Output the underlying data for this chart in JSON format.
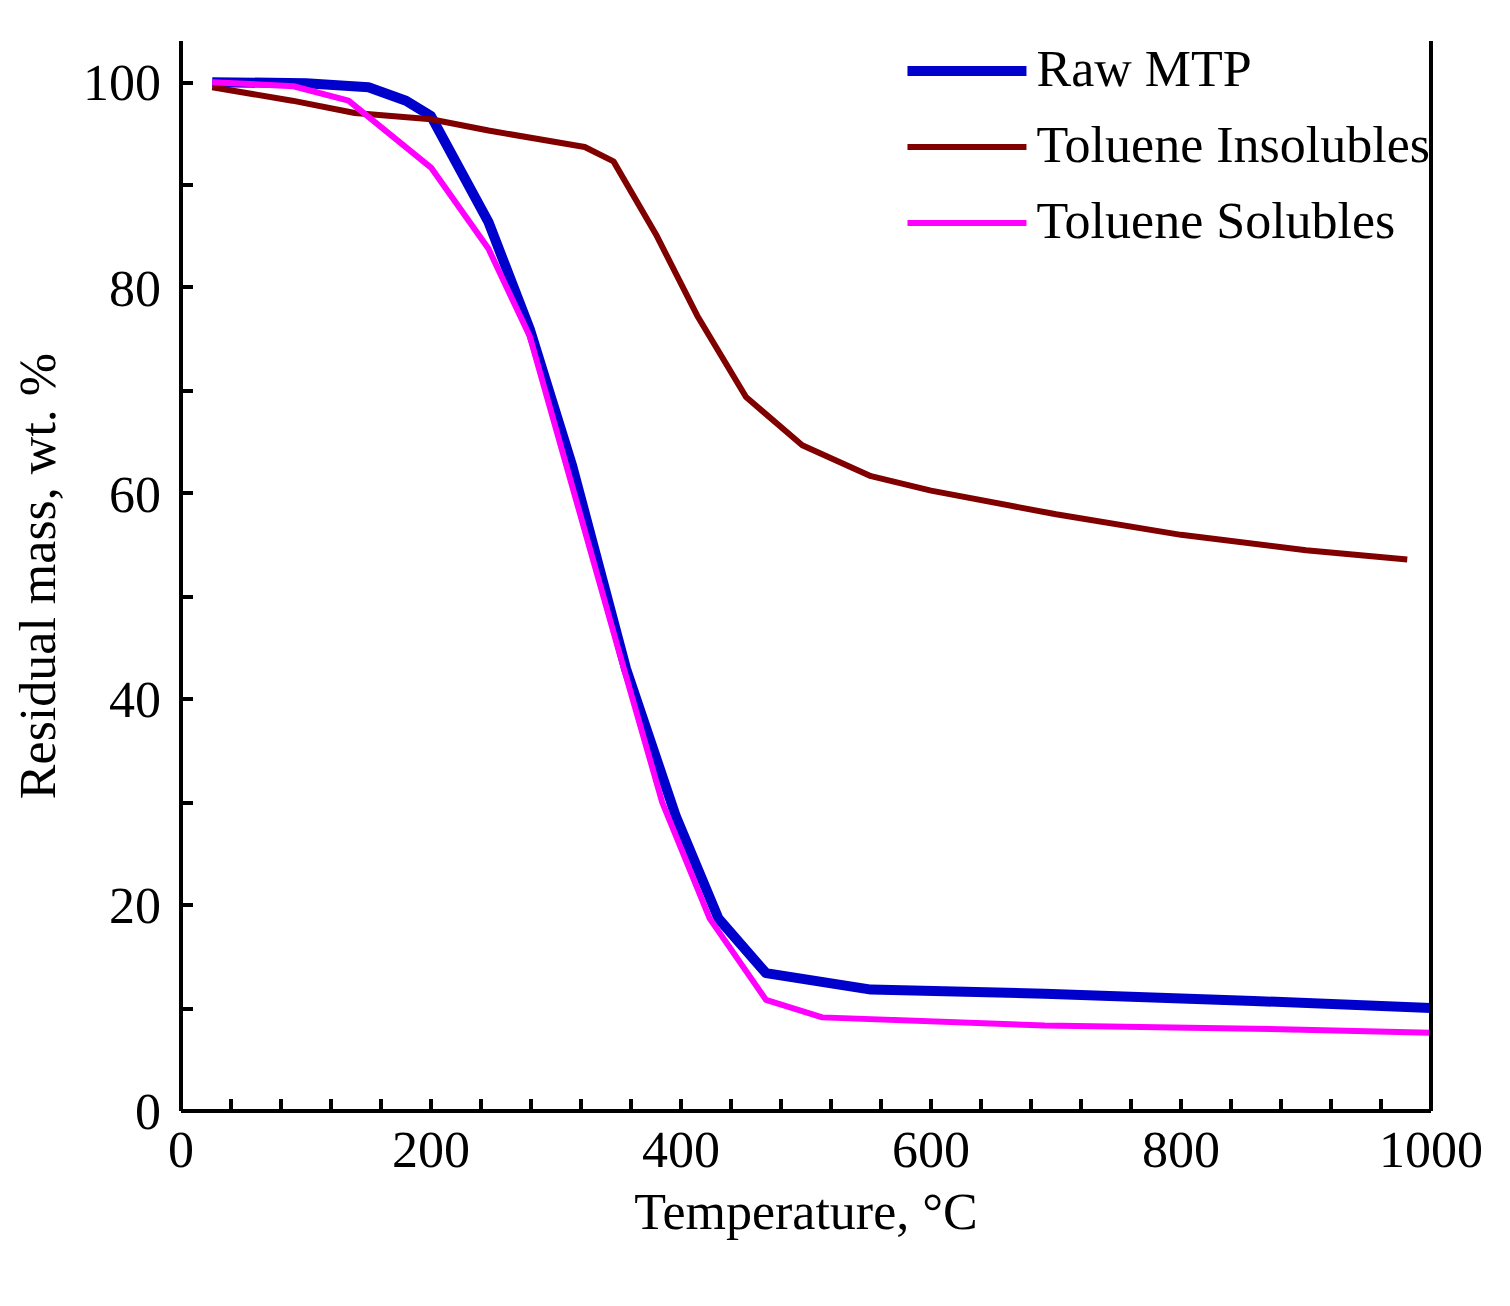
{
  "chart_data": {
    "type": "line",
    "xlabel": "Temperature, °C",
    "ylabel": "Residual mass, wt. %",
    "xlim": [
      0,
      1000
    ],
    "ylim": [
      0,
      104
    ],
    "xticks": [
      0,
      {
        "value": 40,
        "label": null
      },
      {
        "value": 80,
        "label": null
      },
      {
        "value": 120,
        "label": null
      },
      {
        "value": 160,
        "label": null
      },
      200,
      {
        "value": 240,
        "label": null
      },
      {
        "value": 280,
        "label": null
      },
      {
        "value": 320,
        "label": null
      },
      {
        "value": 360,
        "label": null
      },
      400,
      {
        "value": 440,
        "label": null
      },
      {
        "value": 480,
        "label": null
      },
      {
        "value": 520,
        "label": null
      },
      {
        "value": 560,
        "label": null
      },
      600,
      {
        "value": 640,
        "label": null
      },
      {
        "value": 680,
        "label": null
      },
      {
        "value": 720,
        "label": null
      },
      {
        "value": 760,
        "label": null
      },
      800,
      {
        "value": 840,
        "label": null
      },
      {
        "value": 880,
        "label": null
      },
      {
        "value": 920,
        "label": null
      },
      {
        "value": 960,
        "label": null
      },
      1000
    ],
    "yticks": [
      0,
      {
        "value": 10,
        "label": null
      },
      20,
      {
        "value": 30,
        "label": null
      },
      40,
      {
        "value": 50,
        "label": null
      },
      60,
      {
        "value": 70,
        "label": null
      },
      80,
      {
        "value": 90,
        "label": null
      },
      100
    ],
    "legend": "top right",
    "grid": false,
    "line_style": "solid",
    "series": [
      {
        "name": "Raw MTP",
        "color": "#0000cc",
        "x": [
          25,
          100,
          150,
          180,
          200,
          246,
          279,
          313,
          356,
          396,
          430,
          468,
          552,
          691,
          858,
          1000
        ],
        "values": [
          100,
          99.9,
          99.5,
          98.2,
          96.7,
          86.4,
          76,
          62.7,
          43,
          28.6,
          18.7,
          13.4,
          11.8,
          11.4,
          10.7,
          10
        ]
      },
      {
        "name": "Toluene Insolubles",
        "color": "#800000",
        "x": [
          25,
          89,
          139,
          200,
          246,
          323,
          346,
          380,
          413,
          452,
          497,
          552,
          600,
          700,
          800,
          900,
          981
        ],
        "values": [
          99.5,
          98.2,
          97,
          96.4,
          95.3,
          93.7,
          92.3,
          85.2,
          77.3,
          69.4,
          64.7,
          61.7,
          60.3,
          58,
          56,
          54.5,
          53.6
        ]
      },
      {
        "name": "Toluene Solubles",
        "color": "#ff00ff",
        "x": [
          25,
          90,
          134,
          200,
          246,
          279,
          351,
          385,
          423,
          468,
          513,
          691,
          858,
          1000
        ],
        "values": [
          100,
          99.6,
          98.2,
          91.7,
          83.8,
          75.3,
          44.4,
          30,
          18.7,
          10.8,
          9.1,
          8.3,
          8,
          7.6
        ]
      }
    ]
  }
}
